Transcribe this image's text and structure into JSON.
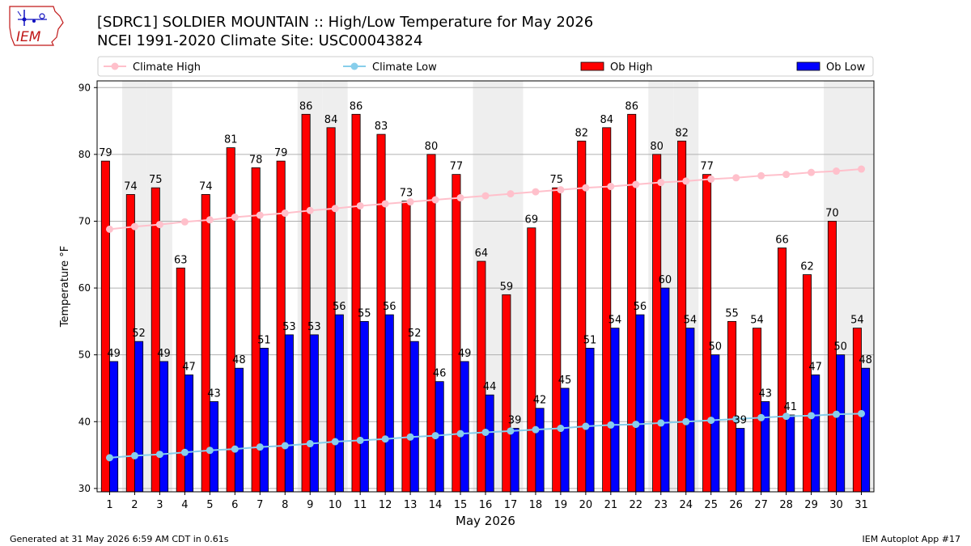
{
  "header": {
    "title_line1": "[SDRC1] SOLDIER MOUNTAIN :: High/Low Temperature for May 2026",
    "title_line2": "NCEI 1991-2020 Climate Site: USC00043824",
    "logo_text": "IEM"
  },
  "footer": {
    "left": "Generated at 31 May 2026 6:59 AM CDT in 0.61s",
    "right": "IEM Autoplot App #17"
  },
  "chart_data": {
    "type": "bar",
    "xlabel": "May 2026",
    "ylabel": "Temperature °F",
    "ylim": [
      29.5,
      91
    ],
    "yticks": [
      30,
      40,
      50,
      60,
      70,
      80,
      90
    ],
    "grid": "horizontal",
    "legend_placement": "top",
    "categories": [
      "1",
      "2",
      "3",
      "4",
      "5",
      "6",
      "7",
      "8",
      "9",
      "10",
      "11",
      "12",
      "13",
      "14",
      "15",
      "16",
      "17",
      "18",
      "19",
      "20",
      "21",
      "22",
      "23",
      "24",
      "25",
      "26",
      "27",
      "28",
      "29",
      "30",
      "31"
    ],
    "weekend_shaded_days": [
      2,
      3,
      9,
      10,
      16,
      17,
      23,
      24,
      30,
      31
    ],
    "series": [
      {
        "name": "Climate High",
        "kind": "line",
        "color": "#ffc0cb",
        "values": [
          68.8,
          69.2,
          69.5,
          69.9,
          70.2,
          70.6,
          70.9,
          71.2,
          71.6,
          71.9,
          72.3,
          72.6,
          72.9,
          73.2,
          73.5,
          73.8,
          74.1,
          74.4,
          74.7,
          75.0,
          75.2,
          75.5,
          75.8,
          76.0,
          76.3,
          76.5,
          76.8,
          77.0,
          77.3,
          77.5,
          77.8
        ]
      },
      {
        "name": "Climate Low",
        "kind": "line",
        "color": "#87ceeb",
        "values": [
          34.6,
          34.9,
          35.1,
          35.4,
          35.7,
          35.9,
          36.2,
          36.4,
          36.7,
          37.0,
          37.2,
          37.4,
          37.7,
          37.9,
          38.2,
          38.4,
          38.6,
          38.8,
          39.0,
          39.3,
          39.5,
          39.6,
          39.8,
          40.0,
          40.2,
          40.4,
          40.6,
          40.8,
          40.9,
          41.1,
          41.2
        ]
      },
      {
        "name": "Ob High",
        "kind": "bar",
        "color": "#ff0000",
        "values": [
          79,
          74,
          75,
          63,
          74,
          81,
          78,
          79,
          86,
          84,
          86,
          83,
          73,
          80,
          77,
          64,
          59,
          69,
          75,
          82,
          84,
          86,
          80,
          82,
          77,
          55,
          54,
          66,
          62,
          70,
          54
        ]
      },
      {
        "name": "Ob Low",
        "kind": "bar",
        "color": "#0000ff",
        "values": [
          49,
          52,
          49,
          47,
          43,
          48,
          51,
          53,
          53,
          56,
          55,
          56,
          52,
          46,
          49,
          44,
          39,
          42,
          45,
          51,
          54,
          56,
          60,
          54,
          50,
          39,
          43,
          41,
          47,
          50,
          48
        ]
      }
    ]
  }
}
